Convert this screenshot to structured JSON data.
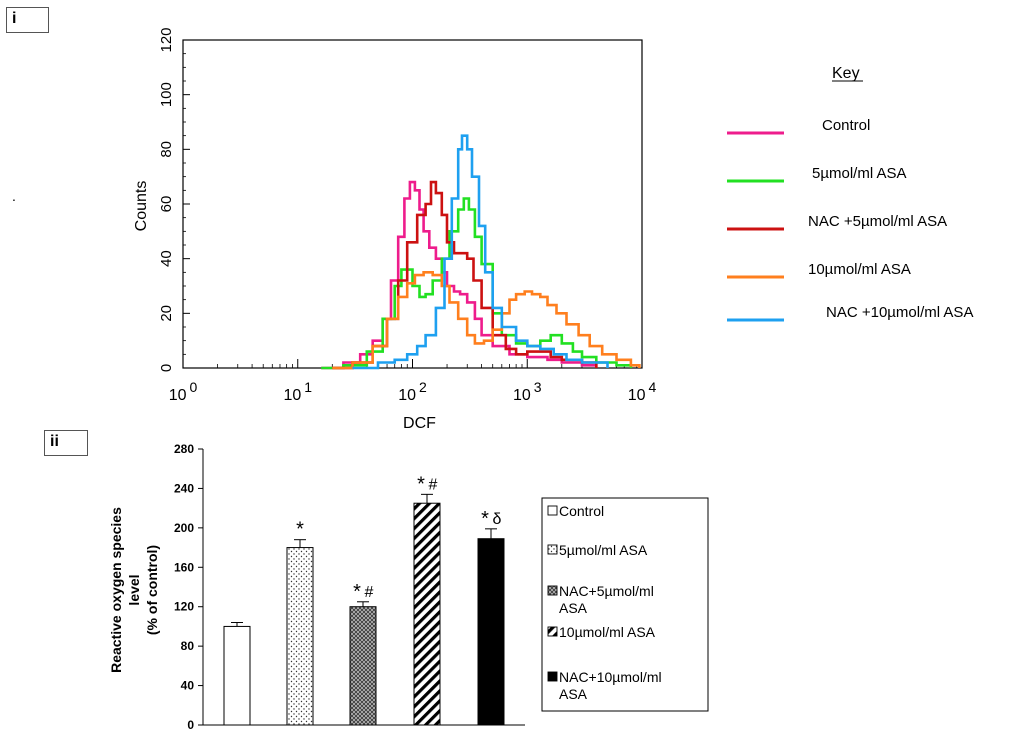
{
  "panels": {
    "top_label": "i",
    "bottom_label": "ii"
  },
  "stray_mark": ".",
  "chart_data": [
    {
      "type": "line",
      "subtype": "flow-cytometry-histogram",
      "xlabel": "DCF",
      "ylabel": "Counts",
      "x_scale": "log",
      "xlim": [
        1,
        10000
      ],
      "ylim": [
        0,
        120
      ],
      "x_ticks": [
        {
          "value": 1,
          "base": "10",
          "exp": "0"
        },
        {
          "value": 10,
          "base": "10",
          "exp": "1"
        },
        {
          "value": 100,
          "base": "10",
          "exp": "2"
        },
        {
          "value": 1000,
          "base": "10",
          "exp": "3"
        },
        {
          "value": 10000,
          "base": "10",
          "exp": "4"
        }
      ],
      "y_ticks": [
        "0",
        "20",
        "40",
        "60",
        "80",
        "100",
        "120"
      ],
      "legend_title": "Key",
      "legend_position": "right",
      "series": [
        {
          "name": "Control",
          "color": "#ee1c8c",
          "points": [
            [
              16,
              0
            ],
            [
              25,
              2
            ],
            [
              35,
              5
            ],
            [
              45,
              10
            ],
            [
              55,
              18
            ],
            [
              65,
              32
            ],
            [
              75,
              48
            ],
            [
              85,
              62
            ],
            [
              95,
              68
            ],
            [
              105,
              65
            ],
            [
              115,
              58
            ],
            [
              125,
              50
            ],
            [
              140,
              44
            ],
            [
              160,
              40
            ],
            [
              180,
              35
            ],
            [
              200,
              30
            ],
            [
              230,
              28
            ],
            [
              260,
              27
            ],
            [
              300,
              24
            ],
            [
              350,
              18
            ],
            [
              400,
              12
            ],
            [
              500,
              8
            ],
            [
              700,
              5
            ],
            [
              1000,
              4
            ],
            [
              1500,
              3
            ],
            [
              2000,
              2
            ],
            [
              3000,
              1
            ],
            [
              4000,
              0
            ]
          ]
        },
        {
          "name": "5µmol/ml ASA",
          "color": "#22e022",
          "points": [
            [
              16,
              0
            ],
            [
              25,
              1
            ],
            [
              40,
              6
            ],
            [
              55,
              18
            ],
            [
              70,
              30
            ],
            [
              80,
              36
            ],
            [
              90,
              36
            ],
            [
              100,
              30
            ],
            [
              115,
              26
            ],
            [
              130,
              27
            ],
            [
              150,
              32
            ],
            [
              180,
              40
            ],
            [
              210,
              50
            ],
            [
              250,
              58
            ],
            [
              280,
              62
            ],
            [
              310,
              58
            ],
            [
              350,
              48
            ],
            [
              400,
              38
            ],
            [
              500,
              20
            ],
            [
              600,
              12
            ],
            [
              800,
              9
            ],
            [
              1000,
              8
            ],
            [
              1300,
              10
            ],
            [
              1600,
              12
            ],
            [
              2000,
              9
            ],
            [
              2500,
              6
            ],
            [
              3000,
              4
            ],
            [
              4000,
              2
            ],
            [
              6000,
              1
            ],
            [
              8000,
              0
            ]
          ]
        },
        {
          "name": "NAC +5µmol/ml ASA",
          "color": "#cc1111",
          "points": [
            [
              20,
              0
            ],
            [
              30,
              2
            ],
            [
              45,
              8
            ],
            [
              60,
              18
            ],
            [
              75,
              32
            ],
            [
              90,
              46
            ],
            [
              110,
              56
            ],
            [
              130,
              60
            ],
            [
              145,
              68
            ],
            [
              160,
              64
            ],
            [
              180,
              56
            ],
            [
              200,
              46
            ],
            [
              230,
              42
            ],
            [
              260,
              42
            ],
            [
              300,
              40
            ],
            [
              340,
              32
            ],
            [
              400,
              22
            ],
            [
              500,
              12
            ],
            [
              650,
              7
            ],
            [
              800,
              5
            ],
            [
              1000,
              6
            ],
            [
              1300,
              6
            ],
            [
              1600,
              4
            ],
            [
              2000,
              3
            ],
            [
              3000,
              2
            ],
            [
              4000,
              0
            ]
          ]
        },
        {
          "name": "10µmol/ml ASA",
          "color": "#ff7f1e",
          "points": [
            [
              20,
              0
            ],
            [
              30,
              2
            ],
            [
              45,
              8
            ],
            [
              60,
              18
            ],
            [
              75,
              26
            ],
            [
              90,
              31
            ],
            [
              105,
              34
            ],
            [
              125,
              35
            ],
            [
              150,
              34
            ],
            [
              180,
              30
            ],
            [
              210,
              24
            ],
            [
              250,
              18
            ],
            [
              300,
              12
            ],
            [
              350,
              9
            ],
            [
              420,
              10
            ],
            [
              500,
              14
            ],
            [
              600,
              20
            ],
            [
              700,
              25
            ],
            [
              800,
              27
            ],
            [
              950,
              28
            ],
            [
              1100,
              27
            ],
            [
              1300,
              26
            ],
            [
              1500,
              23
            ],
            [
              1800,
              20
            ],
            [
              2200,
              16
            ],
            [
              2800,
              12
            ],
            [
              3500,
              8
            ],
            [
              4500,
              5
            ],
            [
              6000,
              3
            ],
            [
              8000,
              1
            ],
            [
              9500,
              0
            ]
          ]
        },
        {
          "name": "NAC +10µmol/ml ASA",
          "color": "#1ea0f0",
          "points": [
            [
              30,
              0
            ],
            [
              50,
              2
            ],
            [
              70,
              3
            ],
            [
              90,
              5
            ],
            [
              110,
              8
            ],
            [
              130,
              12
            ],
            [
              160,
              22
            ],
            [
              190,
              40
            ],
            [
              220,
              62
            ],
            [
              250,
              80
            ],
            [
              270,
              85
            ],
            [
              300,
              80
            ],
            [
              330,
              70
            ],
            [
              380,
              52
            ],
            [
              430,
              35
            ],
            [
              500,
              22
            ],
            [
              600,
              15
            ],
            [
              800,
              10
            ],
            [
              1000,
              8
            ],
            [
              1300,
              7
            ],
            [
              1700,
              5
            ],
            [
              2200,
              3
            ],
            [
              3000,
              2
            ],
            [
              5000,
              0
            ]
          ]
        }
      ]
    },
    {
      "type": "bar",
      "ylabel": "Reactive oxygen species level (% of control)",
      "ylabel_lines": [
        "Reactive oxygen species",
        "level",
        "(% of control)"
      ],
      "ylim": [
        0,
        280
      ],
      "y_ticks": [
        "0",
        "40",
        "80",
        "120",
        "160",
        "200",
        "240",
        "280"
      ],
      "legend_position": "right",
      "categories": [
        "Control",
        "5µmol/ml ASA",
        "NAC+5µmol/ml ASA",
        "10µmol/ml ASA",
        "NAC+10µmol/ml ASA"
      ],
      "legend_entries": [
        {
          "lines": [
            "Control"
          ],
          "fill": "white"
        },
        {
          "lines": [
            "5µmol/ml ASA"
          ],
          "fill": "dots"
        },
        {
          "lines": [
            "NAC+5µmol/ml",
            "ASA"
          ],
          "fill": "cross"
        },
        {
          "lines": [
            "10µmol/ml ASA"
          ],
          "fill": "diag"
        },
        {
          "lines": [
            "NAC+10µmol/ml",
            "ASA"
          ],
          "fill": "black"
        }
      ],
      "values": [
        100,
        180,
        120,
        225,
        189
      ],
      "errors": [
        4,
        8,
        5,
        9,
        10
      ],
      "annotations": [
        {
          "star": "",
          "mark": ""
        },
        {
          "star": "*",
          "mark": ""
        },
        {
          "star": "*",
          "mark": "#"
        },
        {
          "star": "*",
          "mark": "#"
        },
        {
          "star": "*",
          "mark": "δ"
        }
      ]
    }
  ]
}
